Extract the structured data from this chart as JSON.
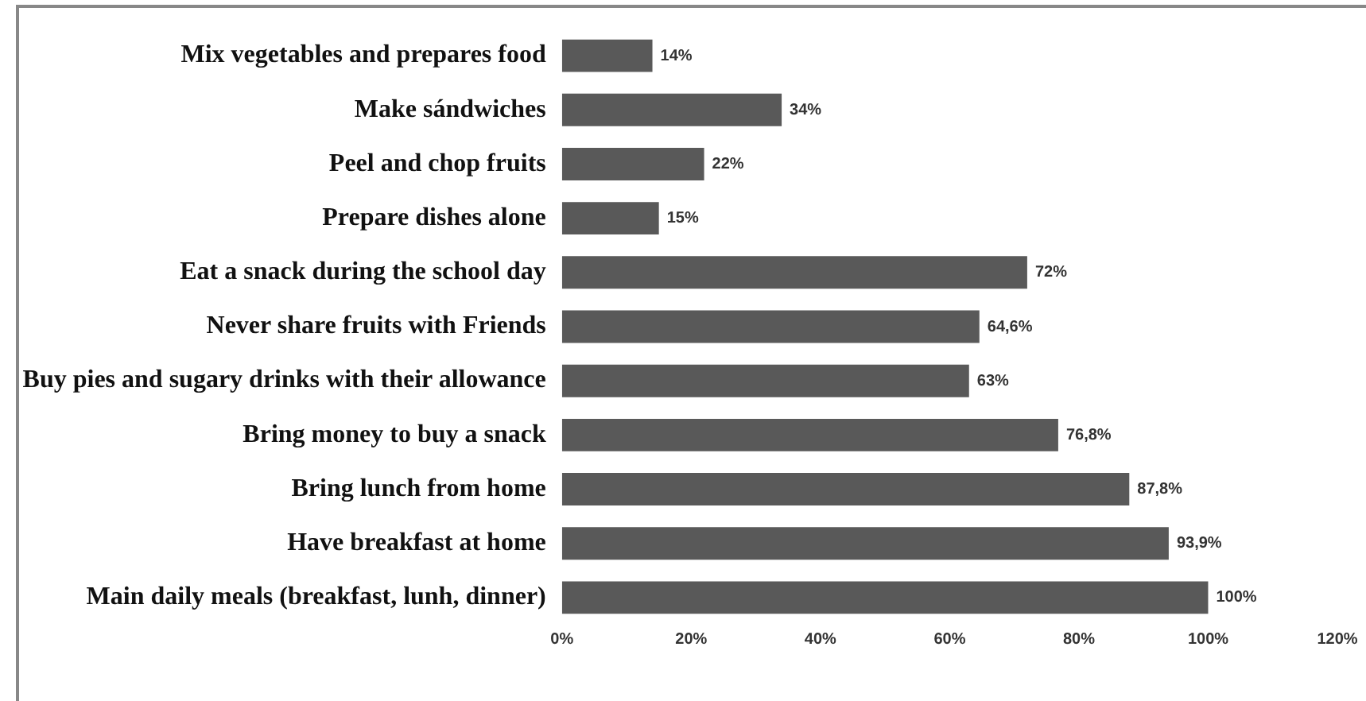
{
  "chart_data": {
    "type": "bar",
    "orientation": "horizontal",
    "categories": [
      "Mix vegetables and prepares food",
      "Make sándwiches",
      "Peel and chop fruits",
      "Prepare dishes alone",
      "Eat a snack during the school day",
      "Never share fruits with Friends",
      "Buy pies and sugary drinks with their allowance",
      "Bring money to buy a snack",
      "Bring lunch from home",
      "Have breakfast at home",
      "Main daily meals (breakfast, lunh, dinner)"
    ],
    "values": [
      14,
      34,
      22,
      15,
      72,
      64.6,
      63,
      76.8,
      87.8,
      93.9,
      100
    ],
    "value_labels": [
      "14%",
      "34%",
      "22%",
      "15%",
      "72%",
      "64,6%",
      "63%",
      "76,8%",
      "87,8%",
      "93,9%",
      "100%"
    ],
    "color": "#595959",
    "xlim": [
      0,
      120
    ],
    "xticks": [
      {
        "value": 0,
        "label": "0%"
      },
      {
        "value": 20,
        "label": "20%"
      },
      {
        "value": 40,
        "label": "40%"
      },
      {
        "value": 60,
        "label": "60%"
      },
      {
        "value": 80,
        "label": "80%"
      },
      {
        "value": 100,
        "label": "100%"
      },
      {
        "value": 120,
        "label": "120%"
      }
    ],
    "grid": false,
    "legend": false
  }
}
